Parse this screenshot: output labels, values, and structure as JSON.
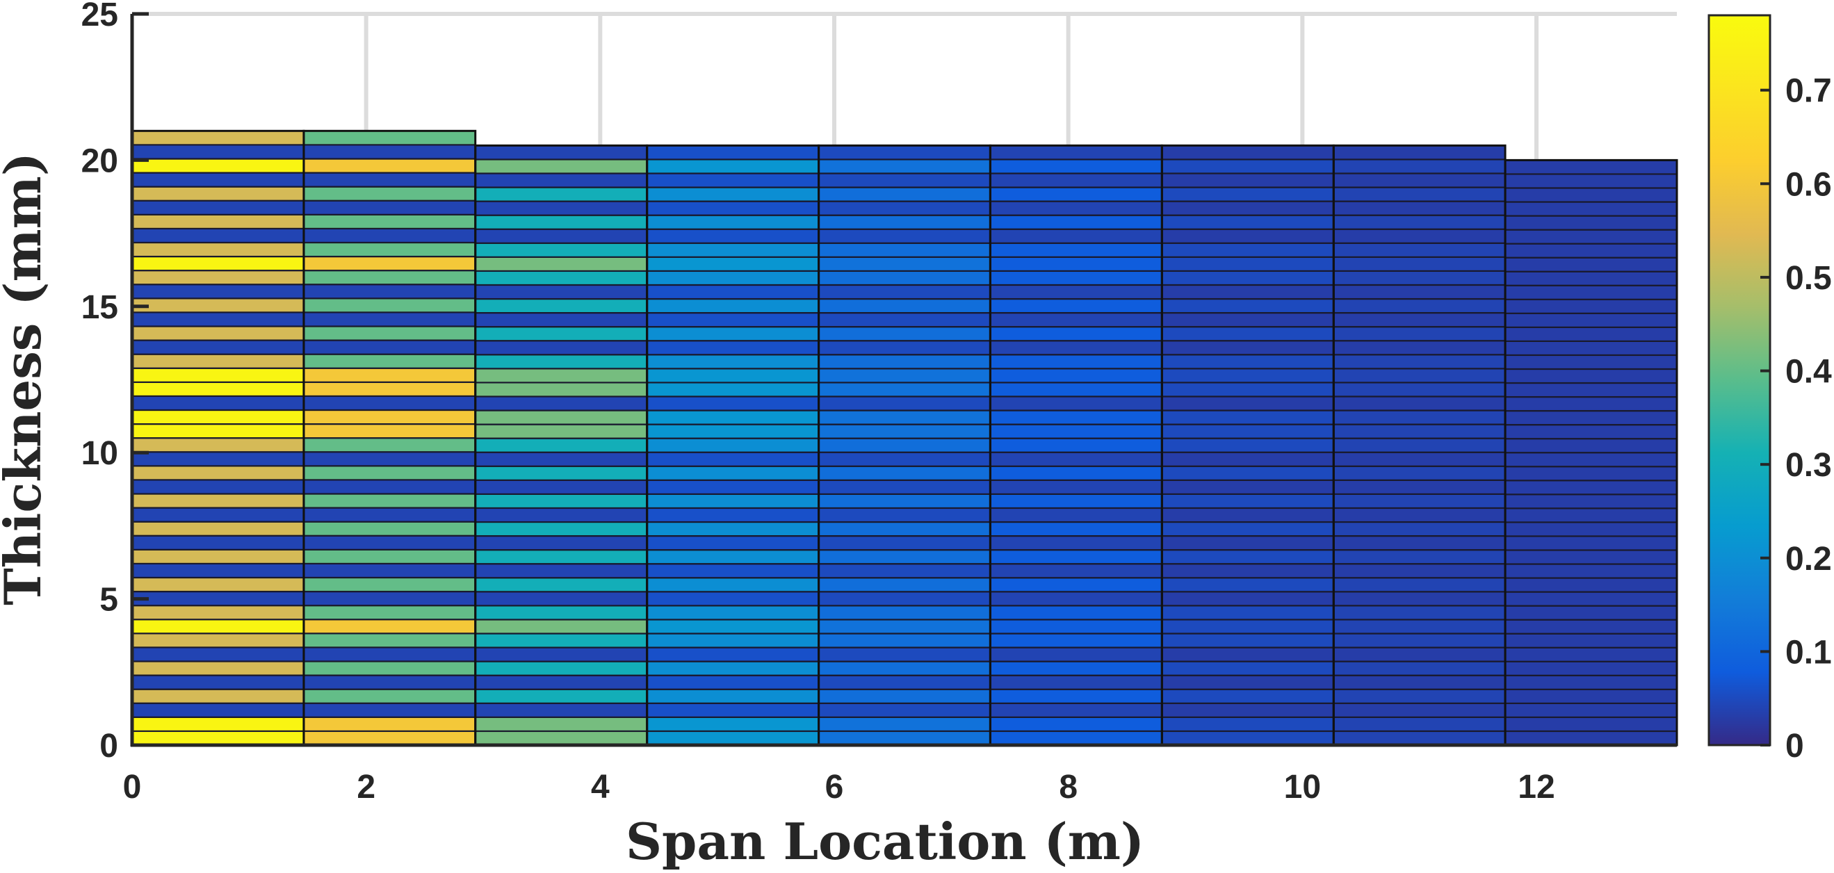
{
  "chart_data": {
    "type": "heatmap",
    "xlabel": "Span Location (m)",
    "ylabel": "Thickness (mm)",
    "xlim": [
      0,
      13.2
    ],
    "ylim": [
      0,
      25
    ],
    "x_ticks": [
      "0",
      "2",
      "4",
      "6",
      "8",
      "10",
      "12"
    ],
    "y_ticks": [
      "0",
      "5",
      "10",
      "15",
      "20",
      "25"
    ],
    "grid": "vertical",
    "colorbar": {
      "position": "right",
      "range": [
        0,
        0.78
      ],
      "ticks": [
        "0",
        "0.1",
        "0.2",
        "0.3",
        "0.4",
        "0.5",
        "0.6",
        "0.7"
      ],
      "colormap": "parula"
    },
    "segment_width_m": 1.467,
    "segments": [
      {
        "x_start": 0.0,
        "x_end": 1.467,
        "thickness_mm": 21.0,
        "layers": 44,
        "base_value": 0.04,
        "highlight_value": 0.53,
        "peak_value": 0.76
      },
      {
        "x_start": 1.467,
        "x_end": 2.933,
        "thickness_mm": 21.0,
        "layers": 44,
        "base_value": 0.04,
        "highlight_value": 0.4,
        "peak_value": 0.6
      },
      {
        "x_start": 2.933,
        "x_end": 4.4,
        "thickness_mm": 20.5,
        "layers": 43,
        "base_value": 0.04,
        "highlight_value": 0.3,
        "peak_value": 0.42
      },
      {
        "x_start": 4.4,
        "x_end": 5.867,
        "thickness_mm": 20.5,
        "layers": 43,
        "base_value": 0.06,
        "highlight_value": 0.2,
        "peak_value": 0.22
      },
      {
        "x_start": 5.867,
        "x_end": 7.333,
        "thickness_mm": 20.5,
        "layers": 43,
        "base_value": 0.05,
        "highlight_value": 0.12,
        "peak_value": 0.13
      },
      {
        "x_start": 7.333,
        "x_end": 8.8,
        "thickness_mm": 20.5,
        "layers": 43,
        "base_value": 0.04,
        "highlight_value": 0.08,
        "peak_value": 0.08
      },
      {
        "x_start": 8.8,
        "x_end": 10.267,
        "thickness_mm": 20.5,
        "layers": 43,
        "base_value": 0.03,
        "highlight_value": 0.05,
        "peak_value": 0.05
      },
      {
        "x_start": 10.267,
        "x_end": 11.733,
        "thickness_mm": 20.5,
        "layers": 43,
        "base_value": 0.03,
        "highlight_value": 0.04,
        "peak_value": 0.04
      },
      {
        "x_start": 11.733,
        "x_end": 13.2,
        "thickness_mm": 20.0,
        "layers": 42,
        "base_value": 0.03,
        "highlight_value": 0.03,
        "peak_value": 0.03
      }
    ],
    "peak_layers_from_bottom": [
      0,
      1,
      8,
      22,
      23,
      25,
      26,
      34,
      41
    ]
  }
}
